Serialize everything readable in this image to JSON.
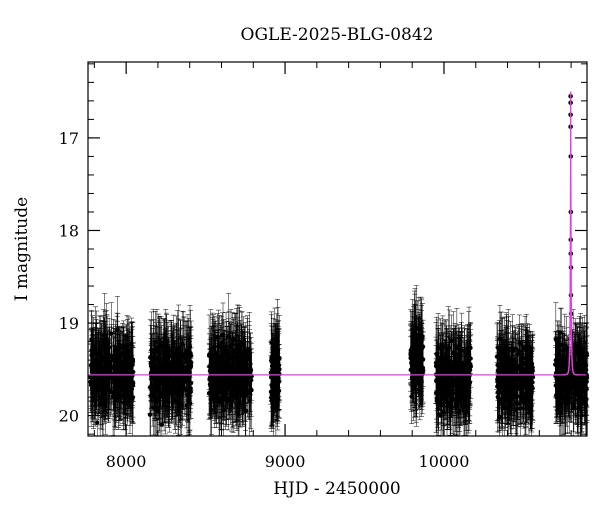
{
  "chart_data": {
    "type": "scatter",
    "title": "OGLE-2025-BLG-0842",
    "xlabel": "HJD - 2450000",
    "ylabel": "I magnitude",
    "xlim": [
      7760,
      10900
    ],
    "ylim": [
      20.22,
      16.18
    ],
    "y_inverted": true,
    "grid": false,
    "x_major_ticks": [
      8000,
      9000,
      10000
    ],
    "x_tick_labels": [
      "8000",
      "9000",
      "10000"
    ],
    "x_minor_step": 200,
    "y_major_ticks": [
      17,
      18,
      19,
      20
    ],
    "y_tick_labels": [
      "17",
      "18",
      "19",
      "20"
    ],
    "y_minor_step": 0.2,
    "series": [
      {
        "kind": "observations",
        "color": "#000000",
        "seasons": [
          {
            "x_range": [
              7775,
              8045
            ],
            "base_mag": 19.55
          },
          {
            "x_range": [
              8150,
              8410
            ],
            "base_mag": 19.55
          },
          {
            "x_range": [
              8520,
              8790
            ],
            "base_mag": 19.55
          },
          {
            "x_range": [
              8910,
              8965
            ],
            "base_mag": 19.55
          },
          {
            "x_range": [
              9790,
              9870
            ],
            "base_mag": 19.4
          },
          {
            "x_range": [
              9950,
              10170
            ],
            "base_mag": 19.6
          },
          {
            "x_range": [
              10330,
              10560
            ],
            "base_mag": 19.6
          },
          {
            "x_range": [
              10700,
              10900
            ],
            "base_mag": 19.6
          }
        ],
        "peak_points": [
          {
            "x": 10797,
            "y": 16.55
          },
          {
            "x": 10797,
            "y": 16.62
          },
          {
            "x": 10797,
            "y": 16.75
          },
          {
            "x": 10797,
            "y": 16.88
          },
          {
            "x": 10798,
            "y": 17.2
          },
          {
            "x": 10798,
            "y": 17.8
          },
          {
            "x": 10798,
            "y": 18.1
          },
          {
            "x": 10798,
            "y": 18.25
          },
          {
            "x": 10799,
            "y": 18.4
          },
          {
            "x": 10799,
            "y": 18.7
          },
          {
            "x": 10800,
            "y": 18.9
          },
          {
            "x": 10801,
            "y": 19.1
          }
        ]
      },
      {
        "kind": "model",
        "color": "#e040e0",
        "baseline_mag": 19.56,
        "t0": 10797.5,
        "peak_mag": 16.5
      }
    ]
  }
}
